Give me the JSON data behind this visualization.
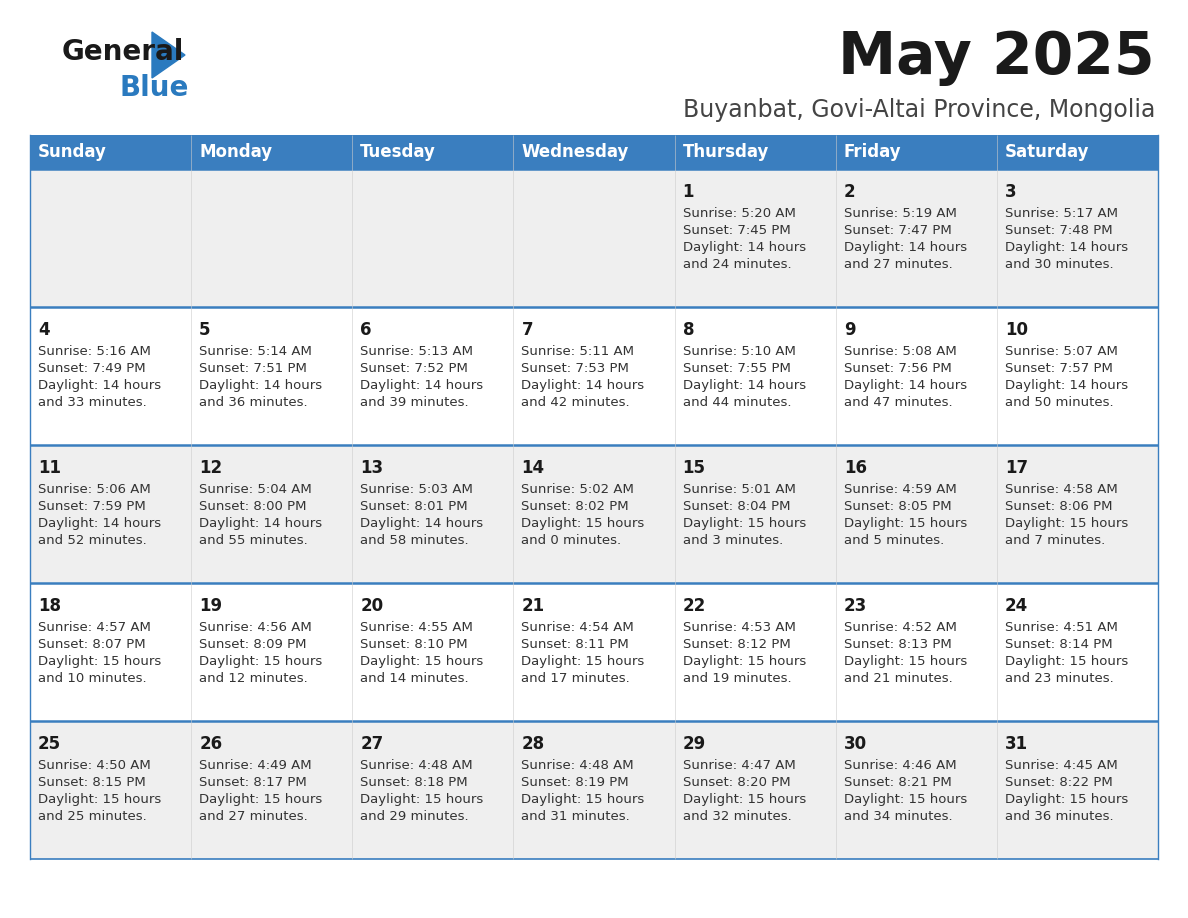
{
  "title": "May 2025",
  "subtitle": "Buyanbat, Govi-Altai Province, Mongolia",
  "header_bg": "#3a7ebf",
  "header_text": "#ffffff",
  "row_bg_odd": "#efefef",
  "row_bg_even": "#ffffff",
  "day_names": [
    "Sunday",
    "Monday",
    "Tuesday",
    "Wednesday",
    "Thursday",
    "Friday",
    "Saturday"
  ],
  "cell_border_color": "#3a7ebf",
  "text_color": "#333333",
  "calendar": [
    [
      null,
      null,
      null,
      null,
      {
        "day": 1,
        "sunrise": "5:20 AM",
        "sunset": "7:45 PM",
        "daylight_h": "14 hours",
        "daylight_m": "and 24 minutes."
      },
      {
        "day": 2,
        "sunrise": "5:19 AM",
        "sunset": "7:47 PM",
        "daylight_h": "14 hours",
        "daylight_m": "and 27 minutes."
      },
      {
        "day": 3,
        "sunrise": "5:17 AM",
        "sunset": "7:48 PM",
        "daylight_h": "14 hours",
        "daylight_m": "and 30 minutes."
      }
    ],
    [
      {
        "day": 4,
        "sunrise": "5:16 AM",
        "sunset": "7:49 PM",
        "daylight_h": "14 hours",
        "daylight_m": "and 33 minutes."
      },
      {
        "day": 5,
        "sunrise": "5:14 AM",
        "sunset": "7:51 PM",
        "daylight_h": "14 hours",
        "daylight_m": "and 36 minutes."
      },
      {
        "day": 6,
        "sunrise": "5:13 AM",
        "sunset": "7:52 PM",
        "daylight_h": "14 hours",
        "daylight_m": "and 39 minutes."
      },
      {
        "day": 7,
        "sunrise": "5:11 AM",
        "sunset": "7:53 PM",
        "daylight_h": "14 hours",
        "daylight_m": "and 42 minutes."
      },
      {
        "day": 8,
        "sunrise": "5:10 AM",
        "sunset": "7:55 PM",
        "daylight_h": "14 hours",
        "daylight_m": "and 44 minutes."
      },
      {
        "day": 9,
        "sunrise": "5:08 AM",
        "sunset": "7:56 PM",
        "daylight_h": "14 hours",
        "daylight_m": "and 47 minutes."
      },
      {
        "day": 10,
        "sunrise": "5:07 AM",
        "sunset": "7:57 PM",
        "daylight_h": "14 hours",
        "daylight_m": "and 50 minutes."
      }
    ],
    [
      {
        "day": 11,
        "sunrise": "5:06 AM",
        "sunset": "7:59 PM",
        "daylight_h": "14 hours",
        "daylight_m": "and 52 minutes."
      },
      {
        "day": 12,
        "sunrise": "5:04 AM",
        "sunset": "8:00 PM",
        "daylight_h": "14 hours",
        "daylight_m": "and 55 minutes."
      },
      {
        "day": 13,
        "sunrise": "5:03 AM",
        "sunset": "8:01 PM",
        "daylight_h": "14 hours",
        "daylight_m": "and 58 minutes."
      },
      {
        "day": 14,
        "sunrise": "5:02 AM",
        "sunset": "8:02 PM",
        "daylight_h": "15 hours",
        "daylight_m": "and 0 minutes."
      },
      {
        "day": 15,
        "sunrise": "5:01 AM",
        "sunset": "8:04 PM",
        "daylight_h": "15 hours",
        "daylight_m": "and 3 minutes."
      },
      {
        "day": 16,
        "sunrise": "4:59 AM",
        "sunset": "8:05 PM",
        "daylight_h": "15 hours",
        "daylight_m": "and 5 minutes."
      },
      {
        "day": 17,
        "sunrise": "4:58 AM",
        "sunset": "8:06 PM",
        "daylight_h": "15 hours",
        "daylight_m": "and 7 minutes."
      }
    ],
    [
      {
        "day": 18,
        "sunrise": "4:57 AM",
        "sunset": "8:07 PM",
        "daylight_h": "15 hours",
        "daylight_m": "and 10 minutes."
      },
      {
        "day": 19,
        "sunrise": "4:56 AM",
        "sunset": "8:09 PM",
        "daylight_h": "15 hours",
        "daylight_m": "and 12 minutes."
      },
      {
        "day": 20,
        "sunrise": "4:55 AM",
        "sunset": "8:10 PM",
        "daylight_h": "15 hours",
        "daylight_m": "and 14 minutes."
      },
      {
        "day": 21,
        "sunrise": "4:54 AM",
        "sunset": "8:11 PM",
        "daylight_h": "15 hours",
        "daylight_m": "and 17 minutes."
      },
      {
        "day": 22,
        "sunrise": "4:53 AM",
        "sunset": "8:12 PM",
        "daylight_h": "15 hours",
        "daylight_m": "and 19 minutes."
      },
      {
        "day": 23,
        "sunrise": "4:52 AM",
        "sunset": "8:13 PM",
        "daylight_h": "15 hours",
        "daylight_m": "and 21 minutes."
      },
      {
        "day": 24,
        "sunrise": "4:51 AM",
        "sunset": "8:14 PM",
        "daylight_h": "15 hours",
        "daylight_m": "and 23 minutes."
      }
    ],
    [
      {
        "day": 25,
        "sunrise": "4:50 AM",
        "sunset": "8:15 PM",
        "daylight_h": "15 hours",
        "daylight_m": "and 25 minutes."
      },
      {
        "day": 26,
        "sunrise": "4:49 AM",
        "sunset": "8:17 PM",
        "daylight_h": "15 hours",
        "daylight_m": "and 27 minutes."
      },
      {
        "day": 27,
        "sunrise": "4:48 AM",
        "sunset": "8:18 PM",
        "daylight_h": "15 hours",
        "daylight_m": "and 29 minutes."
      },
      {
        "day": 28,
        "sunrise": "4:48 AM",
        "sunset": "8:19 PM",
        "daylight_h": "15 hours",
        "daylight_m": "and 31 minutes."
      },
      {
        "day": 29,
        "sunrise": "4:47 AM",
        "sunset": "8:20 PM",
        "daylight_h": "15 hours",
        "daylight_m": "and 32 minutes."
      },
      {
        "day": 30,
        "sunrise": "4:46 AM",
        "sunset": "8:21 PM",
        "daylight_h": "15 hours",
        "daylight_m": "and 34 minutes."
      },
      {
        "day": 31,
        "sunrise": "4:45 AM",
        "sunset": "8:22 PM",
        "daylight_h": "15 hours",
        "daylight_m": "and 36 minutes."
      }
    ]
  ]
}
